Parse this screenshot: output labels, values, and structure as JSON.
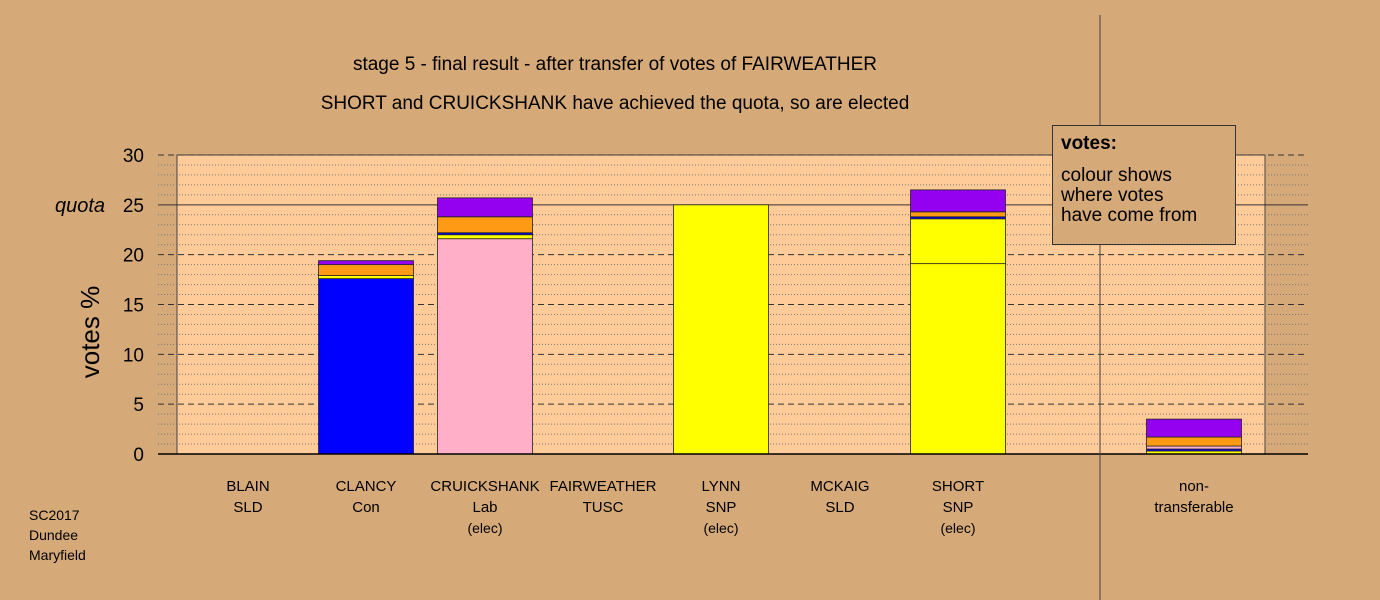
{
  "chart_data": {
    "type": "bar",
    "stacked": true,
    "title": "stage 5 - final result - after transfer of votes of FAIRWEATHER",
    "subtitle": "SHORT and CRUICKSHANK have achieved the quota, so are elected",
    "ylabel": "votes %",
    "ylim": [
      0,
      30
    ],
    "yticks": [
      0,
      5,
      10,
      15,
      20,
      25,
      30
    ],
    "quota": 25,
    "quota_label": "quota",
    "grid": true,
    "legend": {
      "placement": "top-right",
      "title": "votes:",
      "lines": [
        "colour shows",
        "where votes",
        "have come from"
      ]
    },
    "colors": {
      "SNP": "#ffff00",
      "Con": "#0000ff",
      "Lab": "#ffb0c8",
      "SLD": "#ff9a14",
      "TUSC": "#9400f0",
      "plot_bg": "#ffcc99",
      "page_bg": "#d5a978"
    },
    "candidates": [
      {
        "name": "BLAIN",
        "party": "SLD",
        "note": "",
        "segments": []
      },
      {
        "name": "CLANCY",
        "party": "Con",
        "note": "",
        "segments": [
          {
            "source": "Con",
            "value": 17.6
          },
          {
            "source": "SNP",
            "value": 0.3
          },
          {
            "source": "SLD",
            "value": 1.1
          },
          {
            "source": "TUSC",
            "value": 0.4
          }
        ]
      },
      {
        "name": "CRUICKSHANK",
        "party": "Lab",
        "note": "(elec)",
        "segments": [
          {
            "source": "Lab",
            "value": 21.6
          },
          {
            "source": "SNP",
            "value": 0.4
          },
          {
            "source": "Con",
            "value": 0.2
          },
          {
            "source": "SLD",
            "value": 1.6
          },
          {
            "source": "TUSC",
            "value": 1.9
          }
        ]
      },
      {
        "name": "FAIRWEATHER",
        "party": "TUSC",
        "note": "",
        "segments": []
      },
      {
        "name": "LYNN",
        "party": "SNP",
        "note": "(elec)",
        "segments": [
          {
            "source": "SNP",
            "value": 25.0
          }
        ]
      },
      {
        "name": "MCKAIG",
        "party": "SLD",
        "note": "",
        "segments": []
      },
      {
        "name": "SHORT",
        "party": "SNP",
        "note": "(elec)",
        "segments": [
          {
            "source": "SNP",
            "value": 19.1
          },
          {
            "source": "SNP",
            "value": 4.5
          },
          {
            "source": "Con",
            "value": 0.2
          },
          {
            "source": "SLD",
            "value": 0.5
          },
          {
            "source": "TUSC",
            "value": 2.2
          }
        ]
      },
      {
        "name": "non-",
        "party": "transferable",
        "note": "",
        "segments": [
          {
            "source": "SNP",
            "value": 0.3
          },
          {
            "source": "Con",
            "value": 0.2
          },
          {
            "source": "Lab",
            "value": 0.3
          },
          {
            "source": "SLD",
            "value": 0.9
          },
          {
            "source": "TUSC",
            "value": 1.8
          }
        ]
      }
    ]
  },
  "footer": {
    "line1": "SC2017",
    "line2": "Dundee",
    "line3": "Maryfield"
  }
}
